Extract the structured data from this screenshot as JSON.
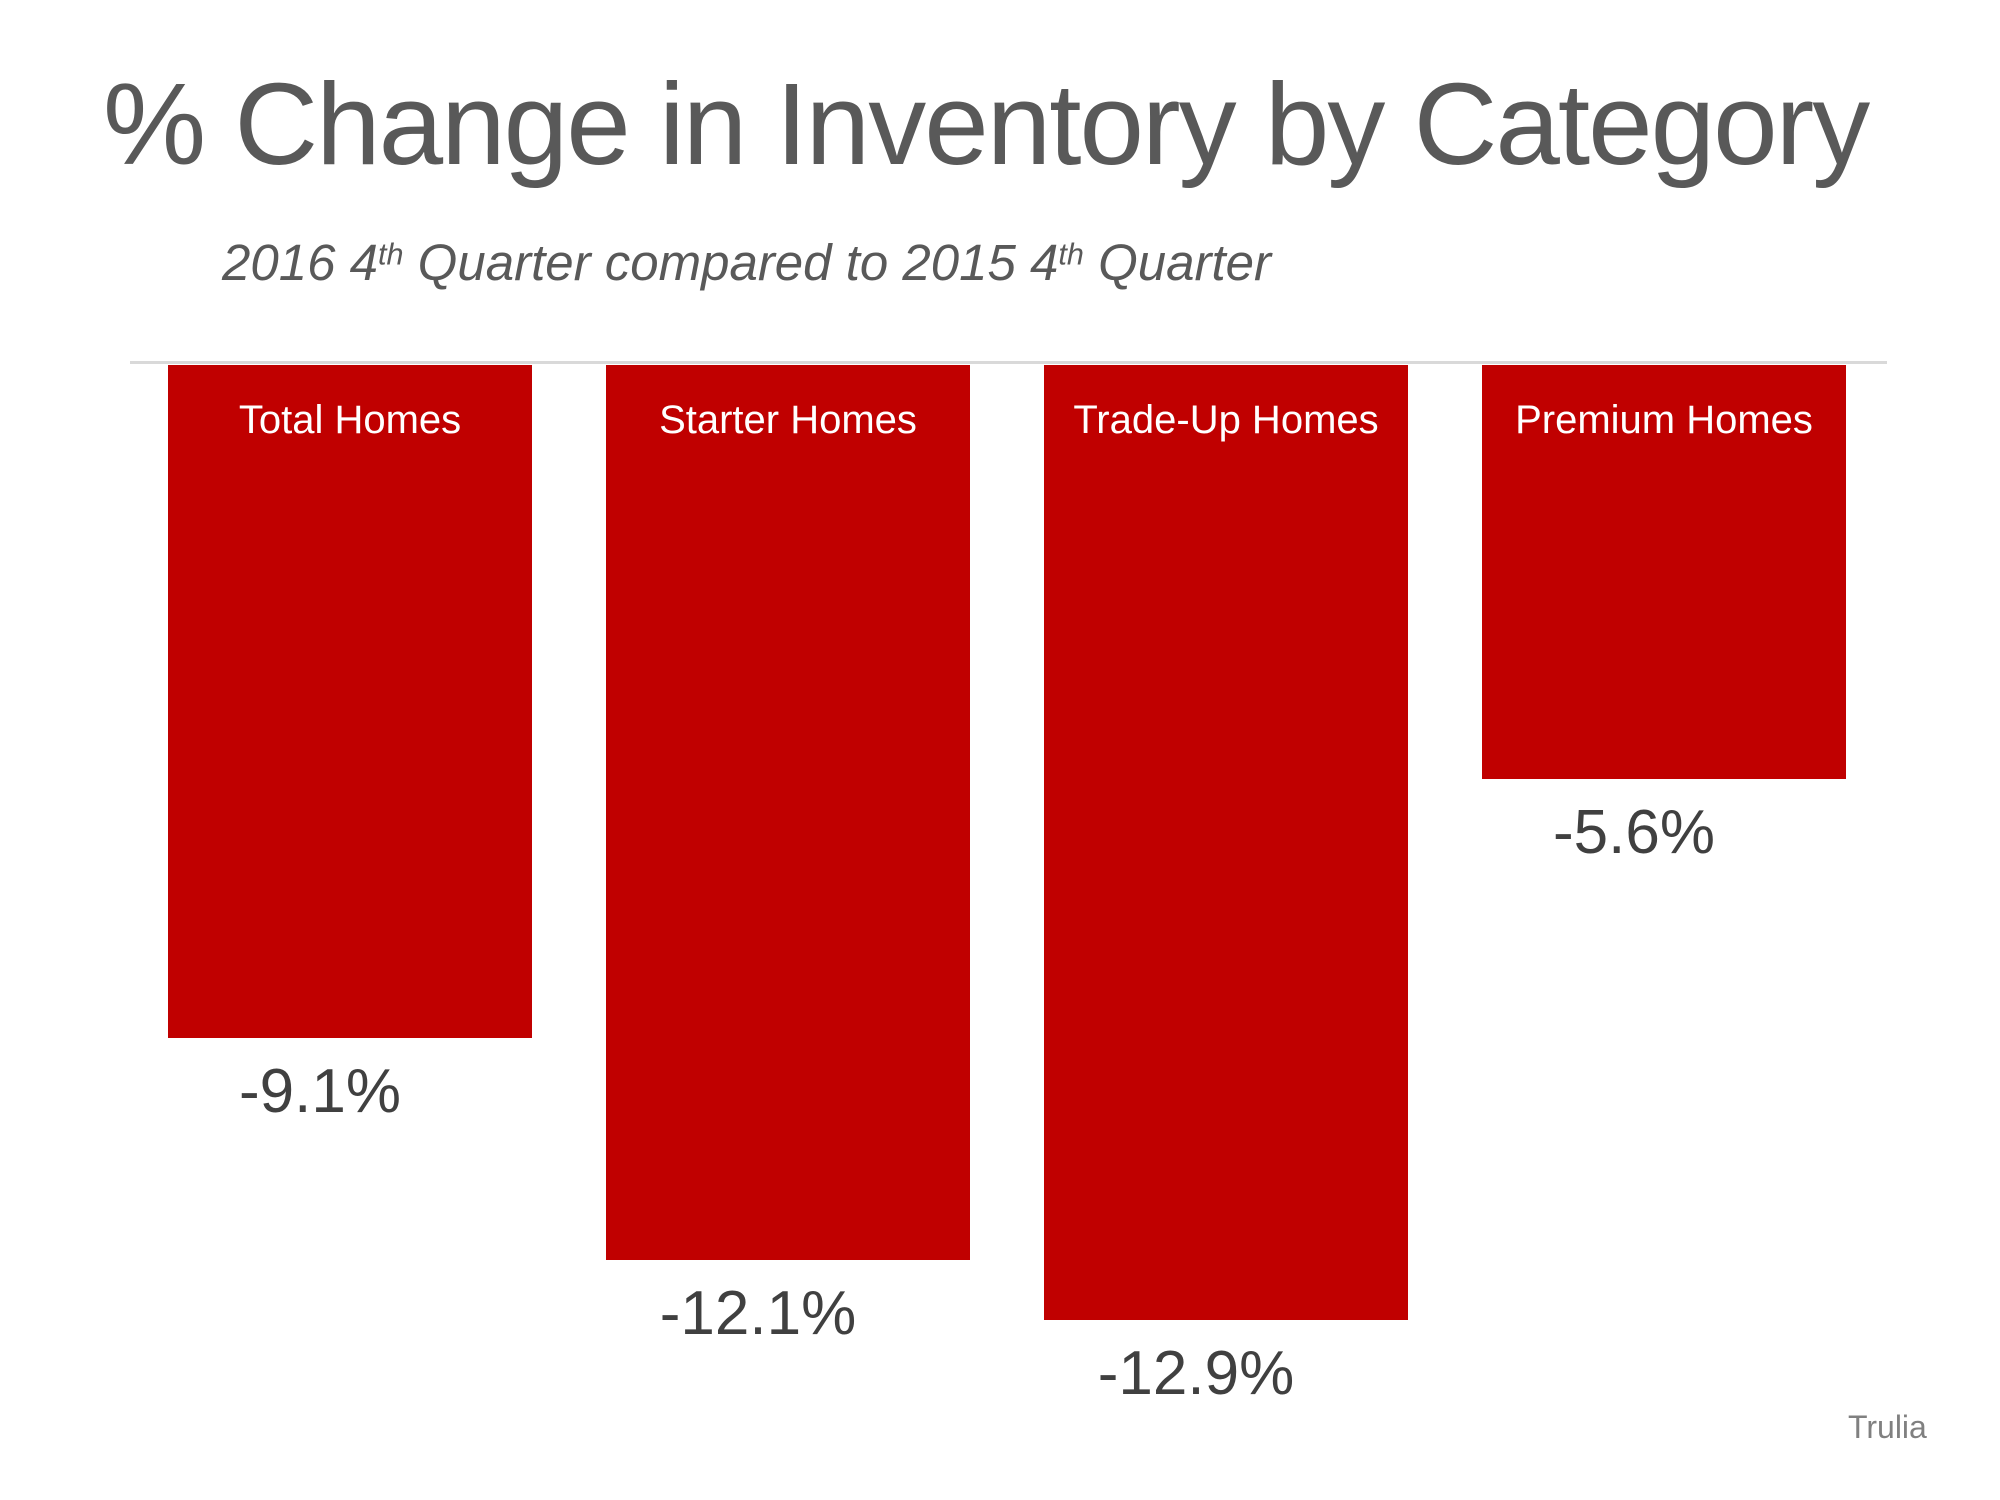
{
  "title": "% Change in Inventory by Category",
  "subtitle": {
    "full": "2016 4th Quarter compared to 2015 4th Quarter",
    "parts": [
      "2016 4",
      "th",
      " Quarter compared to 2015 4",
      "th",
      " Quarter"
    ]
  },
  "source": "Trulia",
  "colors": {
    "bar": "#C00000",
    "title": "#595959",
    "value_label": "#404040",
    "source": "#808080",
    "axis_line": "#D9D9D9",
    "bar_label_text": "#FFFFFF"
  },
  "chart_data": {
    "type": "bar",
    "title": "% Change in Inventory by Category",
    "subtitle": "2016 4th Quarter compared to 2015 4th Quarter",
    "categories": [
      "Total Homes",
      "Starter Homes",
      "Trade-Up Homes",
      "Premium Homes"
    ],
    "values": [
      -9.1,
      -12.1,
      -12.9,
      -5.6
    ],
    "value_labels": [
      "-9.1%",
      "-12.1%",
      "-12.9%",
      "-5.6%"
    ],
    "xlabel": "",
    "ylabel": "",
    "ylim": [
      -14,
      0
    ],
    "baseline": 0,
    "bars_extend_downward": true,
    "category_labels_inside_bar_top": true,
    "value_labels_below_bars": true,
    "grid": false,
    "legend": false,
    "source": "Trulia"
  }
}
